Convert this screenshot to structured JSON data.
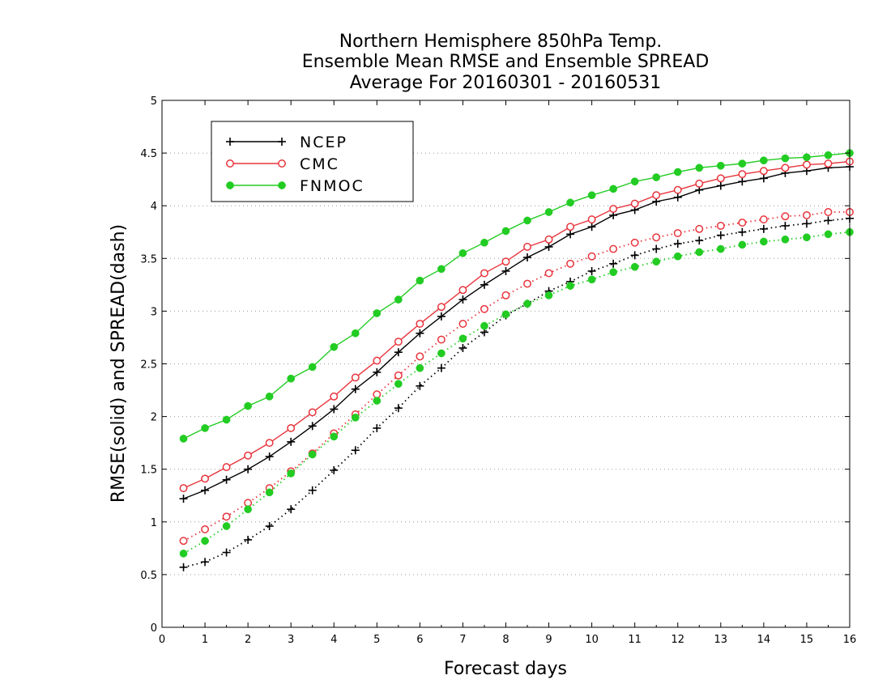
{
  "chart_data": {
    "type": "line",
    "title_lines": [
      "Northern Hemisphere 850hPa Temp.",
      "Ensemble Mean RMSE and Ensemble SPREAD",
      "Average For 20160301 - 20160531"
    ],
    "xlabel": "Forecast days",
    "ylabel": "RMSE(solid) and SPREAD(dash)",
    "xlim": [
      0,
      16
    ],
    "ylim": [
      0,
      5
    ],
    "xticks": [
      0,
      1,
      2,
      3,
      4,
      5,
      6,
      7,
      8,
      9,
      10,
      11,
      12,
      13,
      14,
      15,
      16
    ],
    "xtick_labels": [
      "0",
      "1",
      "2",
      "3",
      "4",
      "5",
      "6",
      "7",
      "8",
      "9",
      "10",
      "11",
      "12",
      "13",
      "14",
      "15",
      "16"
    ],
    "yticks": [
      0,
      0.5,
      1,
      1.5,
      2,
      2.5,
      3,
      3.5,
      4,
      4.5,
      5
    ],
    "ytick_labels": [
      "0",
      "0.5",
      "1",
      "1.5",
      "2",
      "2.5",
      "3",
      "3.5",
      "4",
      "4.5",
      "5"
    ],
    "grid": "horizontal dotted",
    "legend_position": "top-left",
    "x": [
      0.5,
      1,
      1.5,
      2,
      2.5,
      3,
      3.5,
      4,
      4.5,
      5,
      5.5,
      6,
      6.5,
      7,
      7.5,
      8,
      8.5,
      9,
      9.5,
      10,
      10.5,
      11,
      11.5,
      12,
      12.5,
      13,
      13.5,
      14,
      14.5,
      15,
      15.5,
      16
    ],
    "series": [
      {
        "name": "NCEP",
        "kind": "rmse",
        "style": "solid",
        "marker": "plus",
        "color": "#000000",
        "values": [
          1.22,
          1.3,
          1.4,
          1.5,
          1.62,
          1.76,
          1.91,
          2.07,
          2.26,
          2.42,
          2.61,
          2.79,
          2.95,
          3.11,
          3.25,
          3.38,
          3.51,
          3.61,
          3.73,
          3.8,
          3.91,
          3.96,
          4.04,
          4.08,
          4.15,
          4.19,
          4.23,
          4.26,
          4.31,
          4.33,
          4.36,
          4.37
        ]
      },
      {
        "name": "CMC",
        "kind": "rmse",
        "style": "solid",
        "marker": "open-circle",
        "color": "#e8343c",
        "values": [
          1.32,
          1.41,
          1.52,
          1.63,
          1.75,
          1.89,
          2.04,
          2.19,
          2.37,
          2.53,
          2.71,
          2.88,
          3.04,
          3.2,
          3.36,
          3.47,
          3.61,
          3.68,
          3.8,
          3.87,
          3.97,
          4.02,
          4.1,
          4.15,
          4.21,
          4.26,
          4.3,
          4.33,
          4.36,
          4.39,
          4.4,
          4.42
        ]
      },
      {
        "name": "FNMOC",
        "kind": "rmse",
        "style": "solid",
        "marker": "filled-circle",
        "color": "#22cc22",
        "values": [
          1.79,
          1.89,
          1.97,
          2.1,
          2.19,
          2.36,
          2.47,
          2.66,
          2.79,
          2.98,
          3.11,
          3.29,
          3.4,
          3.55,
          3.65,
          3.76,
          3.86,
          3.94,
          4.03,
          4.1,
          4.16,
          4.23,
          4.27,
          4.32,
          4.36,
          4.38,
          4.4,
          4.43,
          4.45,
          4.46,
          4.48,
          4.5
        ]
      },
      {
        "name": "NCEP",
        "kind": "spread",
        "style": "dotted",
        "marker": "plus",
        "color": "#000000",
        "values": [
          0.57,
          0.62,
          0.71,
          0.83,
          0.96,
          1.12,
          1.3,
          1.49,
          1.68,
          1.89,
          2.08,
          2.29,
          2.46,
          2.65,
          2.8,
          2.96,
          3.07,
          3.19,
          3.28,
          3.38,
          3.45,
          3.53,
          3.59,
          3.64,
          3.67,
          3.72,
          3.75,
          3.78,
          3.81,
          3.83,
          3.86,
          3.88
        ]
      },
      {
        "name": "CMC",
        "kind": "spread",
        "style": "dotted",
        "marker": "open-circle",
        "color": "#e8343c",
        "values": [
          0.82,
          0.93,
          1.05,
          1.18,
          1.32,
          1.48,
          1.65,
          1.84,
          2.02,
          2.21,
          2.39,
          2.57,
          2.73,
          2.88,
          3.02,
          3.15,
          3.26,
          3.36,
          3.45,
          3.52,
          3.59,
          3.65,
          3.7,
          3.74,
          3.78,
          3.81,
          3.84,
          3.87,
          3.9,
          3.91,
          3.94,
          3.94
        ]
      },
      {
        "name": "FNMOC",
        "kind": "spread",
        "style": "dotted",
        "marker": "filled-circle",
        "color": "#22cc22",
        "values": [
          0.7,
          0.82,
          0.96,
          1.12,
          1.28,
          1.46,
          1.64,
          1.81,
          1.99,
          2.15,
          2.31,
          2.46,
          2.6,
          2.74,
          2.86,
          2.97,
          3.07,
          3.15,
          3.24,
          3.3,
          3.37,
          3.42,
          3.47,
          3.52,
          3.56,
          3.59,
          3.63,
          3.66,
          3.68,
          3.7,
          3.73,
          3.75
        ]
      }
    ],
    "legend": [
      {
        "name": "NCEP",
        "marker": "plus",
        "color": "#000000"
      },
      {
        "name": "CMC",
        "marker": "open-circle",
        "color": "#e8343c"
      },
      {
        "name": "FNMOC",
        "marker": "filled-circle",
        "color": "#22cc22"
      }
    ]
  }
}
